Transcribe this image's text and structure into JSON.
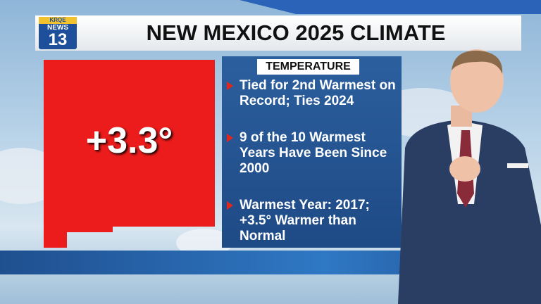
{
  "logo": {
    "top": "KRQE",
    "middle": "NEWS",
    "number": "13"
  },
  "header": {
    "title": "NEW MEXICO 2025 CLIMATE"
  },
  "map": {
    "value": "+3.3°"
  },
  "panel": {
    "title": "TEMPERATURE",
    "bullets": [
      "Tied for 2nd Warmest on Record; Ties 2024",
      "9 of the 10 Warmest Years Have Been Since 2000",
      "Warmest Year: 2017; +3.5° Warmer than Normal"
    ]
  }
}
